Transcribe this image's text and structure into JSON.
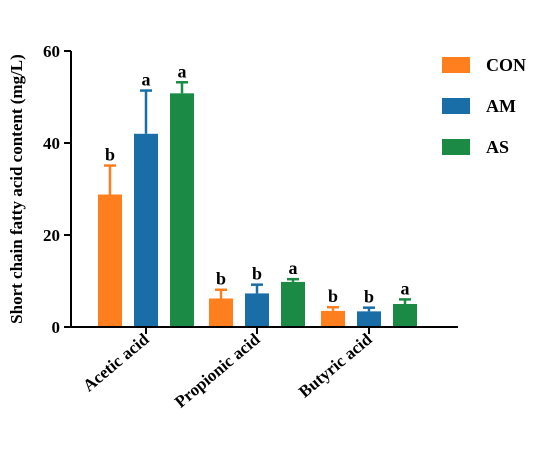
{
  "chart_data": {
    "type": "bar",
    "title": "",
    "ylabel": "Short chain fatty acid content (mg/L)",
    "xlabel": "",
    "ylim": [
      0,
      60
    ],
    "yticks": [
      0,
      20,
      40,
      60
    ],
    "categories": [
      "Acetic acid",
      "Propionic acid",
      "Butyric acid"
    ],
    "legend_position": "top-right",
    "grid": false,
    "series": [
      {
        "name": "CON",
        "color": "#ff7f1e",
        "values": [
          28.8,
          6.2,
          3.5
        ],
        "errors": [
          6.3,
          1.9,
          0.8
        ],
        "letters": [
          "b",
          "b",
          "b"
        ]
      },
      {
        "name": "AM",
        "color": "#1a6ea8",
        "values": [
          42.0,
          7.3,
          3.4
        ],
        "errors": [
          9.4,
          1.9,
          0.8
        ],
        "letters": [
          "a",
          "b",
          "b"
        ]
      },
      {
        "name": "AS",
        "color": "#1b8a44",
        "values": [
          50.8,
          9.8,
          5.0
        ],
        "errors": [
          2.4,
          0.6,
          1.0
        ],
        "letters": [
          "a",
          "a",
          "a"
        ]
      }
    ]
  }
}
